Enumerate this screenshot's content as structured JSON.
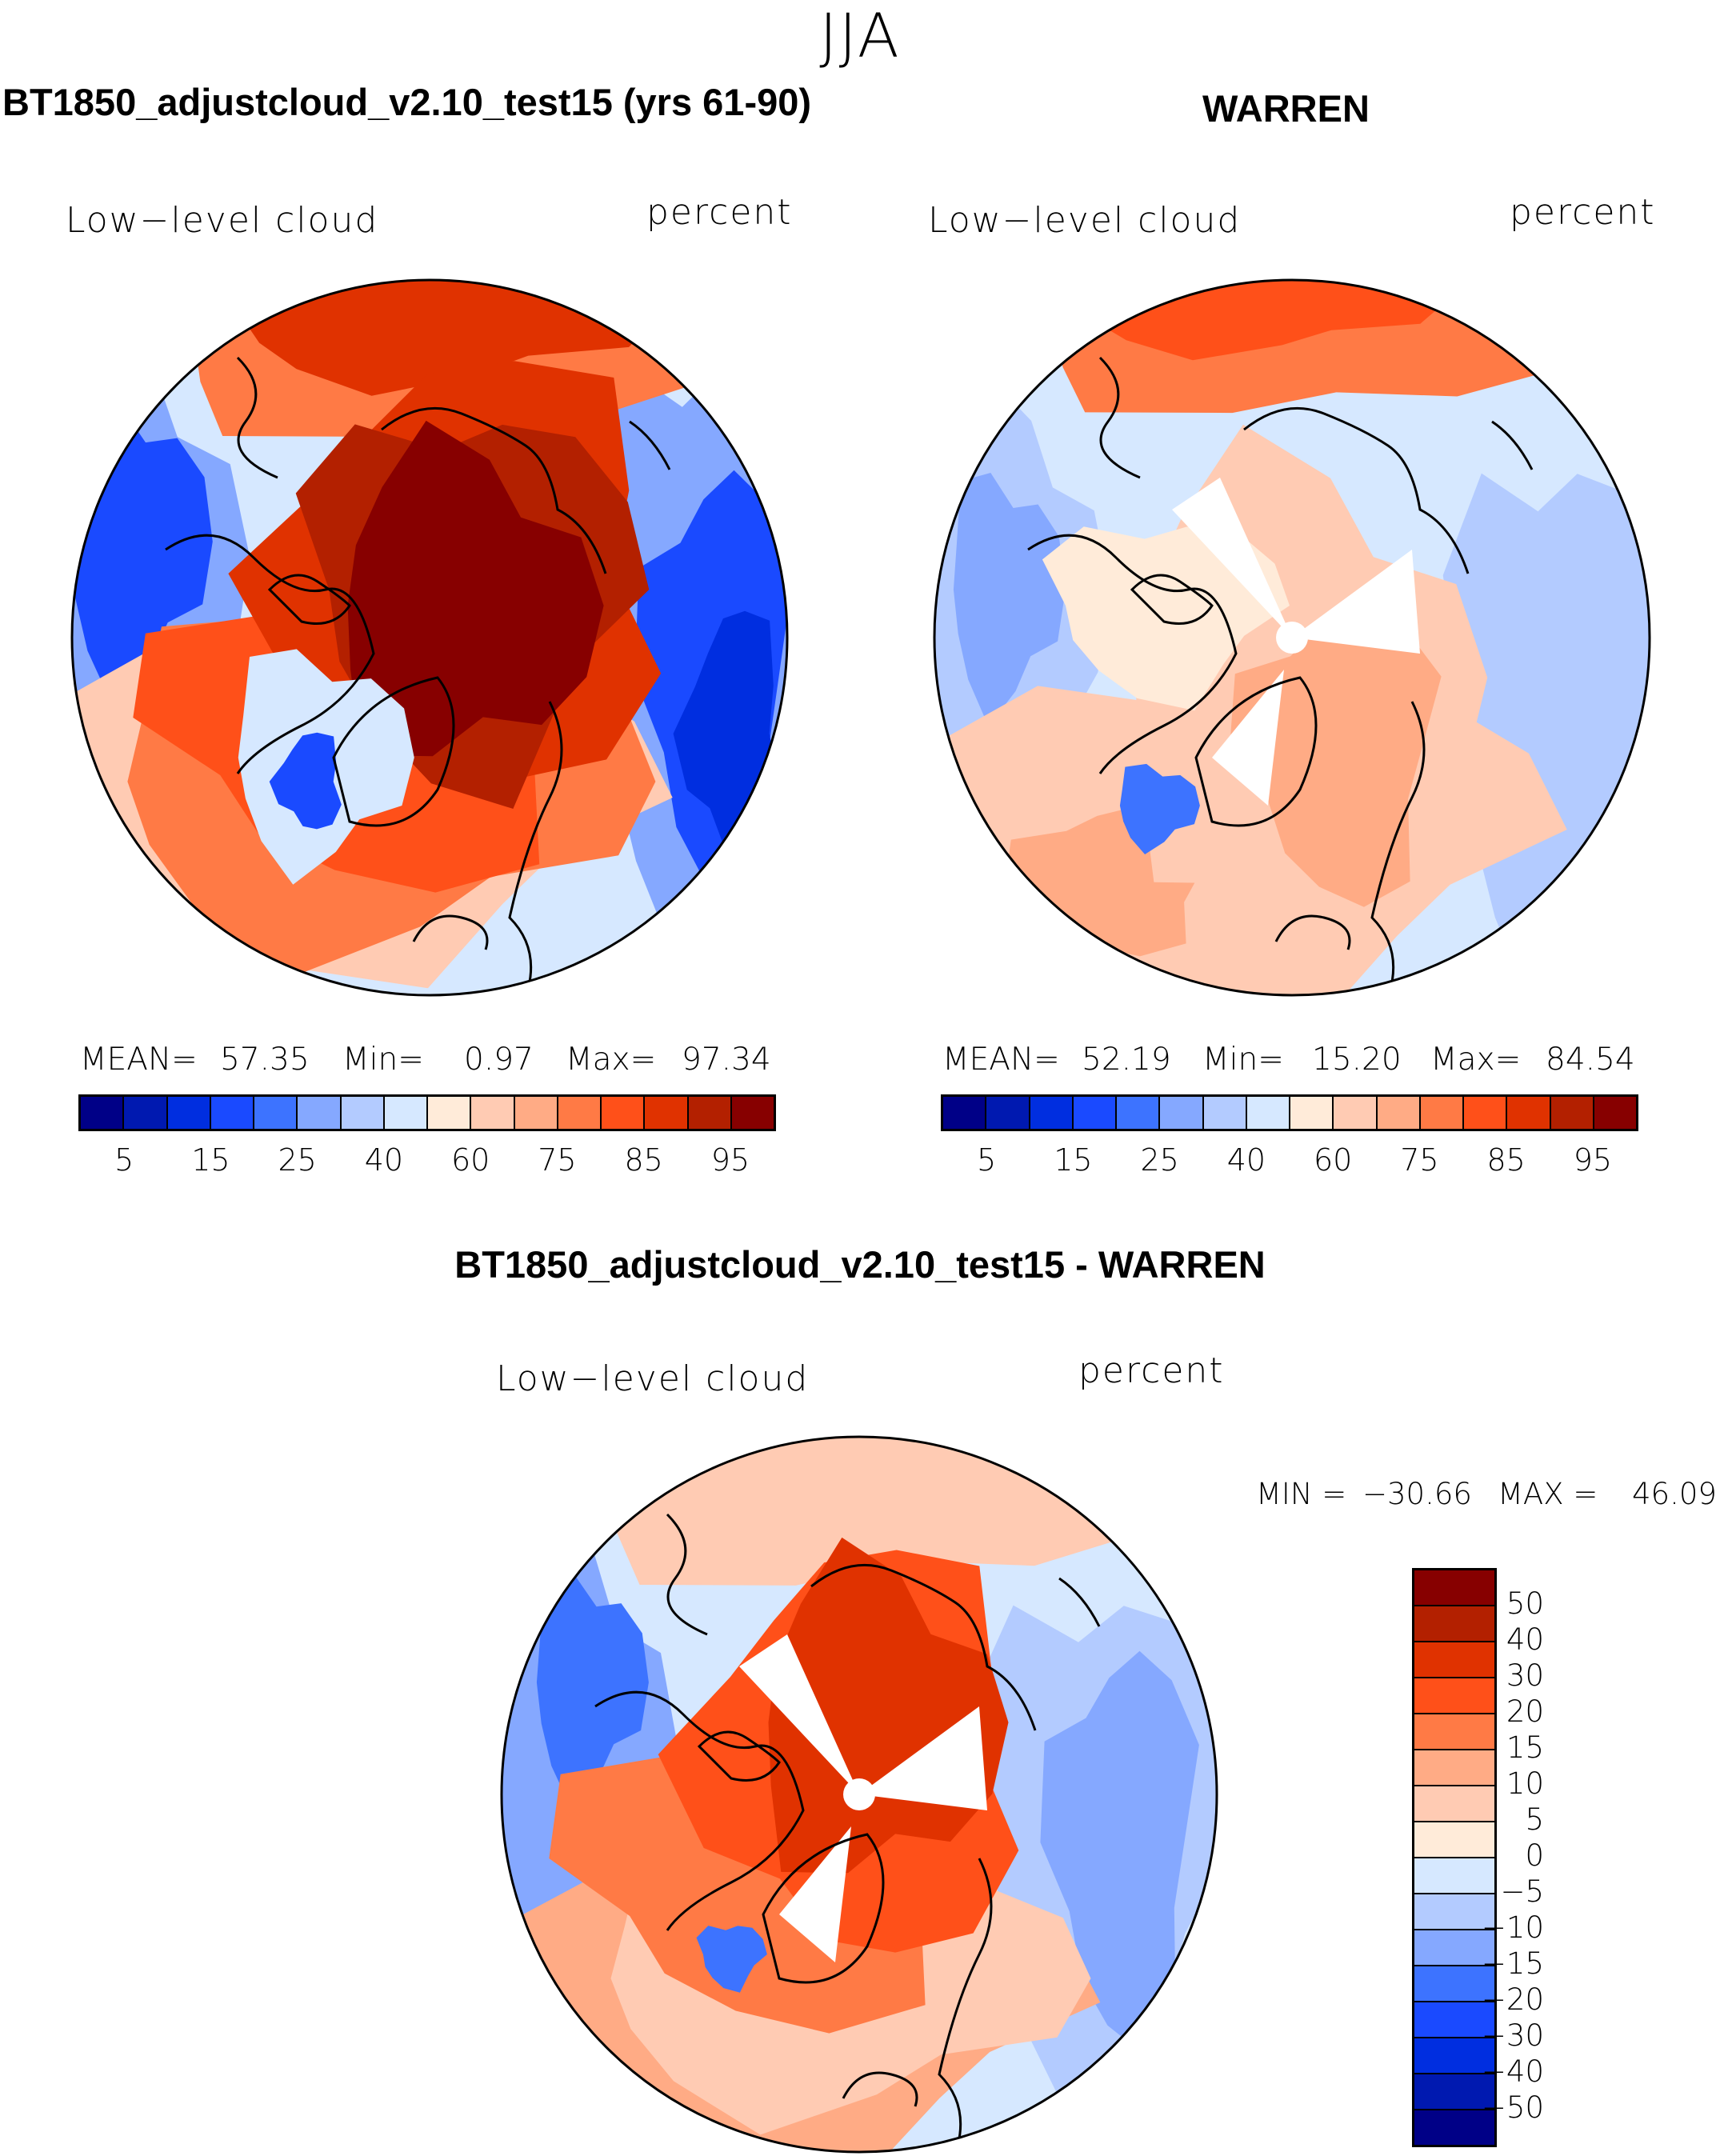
{
  "figure": {
    "season": "JJA"
  },
  "colors": [
    "#000087",
    "#0019b0",
    "#002ee0",
    "#1a4aff",
    "#3d73ff",
    "#85a8ff",
    "#b3cbff",
    "#d6e8ff",
    "#ffebd9",
    "#ffcbb3",
    "#ffab85",
    "#ff7a45",
    "#ff5019",
    "#e03200",
    "#b32000",
    "#870000"
  ],
  "panels": [
    {
      "title": "BT1850_adjustcloud_v2.10_test15 (yrs 61-90)",
      "variable": "Low−level cloud",
      "units": "percent",
      "stats": {
        "mean_label": "MEAN=",
        "mean": "57.35",
        "min_label": "Min=",
        "min": "0.97",
        "max_label": "Max=",
        "max": "97.34"
      },
      "colorbar_labels": [
        "5",
        "15",
        "25",
        "40",
        "60",
        "75",
        "85",
        "95"
      ]
    },
    {
      "title": "WARREN",
      "variable": "Low−level cloud",
      "units": "percent",
      "stats": {
        "mean_label": "MEAN=",
        "mean": "52.19",
        "min_label": "Min=",
        "min": "15.20",
        "max_label": "Max=",
        "max": "84.54"
      },
      "colorbar_labels": [
        "5",
        "15",
        "25",
        "40",
        "60",
        "75",
        "85",
        "95"
      ]
    },
    {
      "title": "BT1850_adjustcloud_v2.10_test15 - WARREN",
      "variable": "Low−level cloud",
      "units": "percent",
      "stats": {
        "min_label": "MIN  =",
        "min": "−30.66",
        "max_label": "MAX  =",
        "max": "46.09"
      },
      "colorbar_labels": [
        "50",
        "40",
        "30",
        "20",
        "15",
        "10",
        "5",
        "0",
        "−5",
        "−10",
        "−15",
        "−20",
        "−30",
        "−40",
        "−50"
      ]
    }
  ]
}
